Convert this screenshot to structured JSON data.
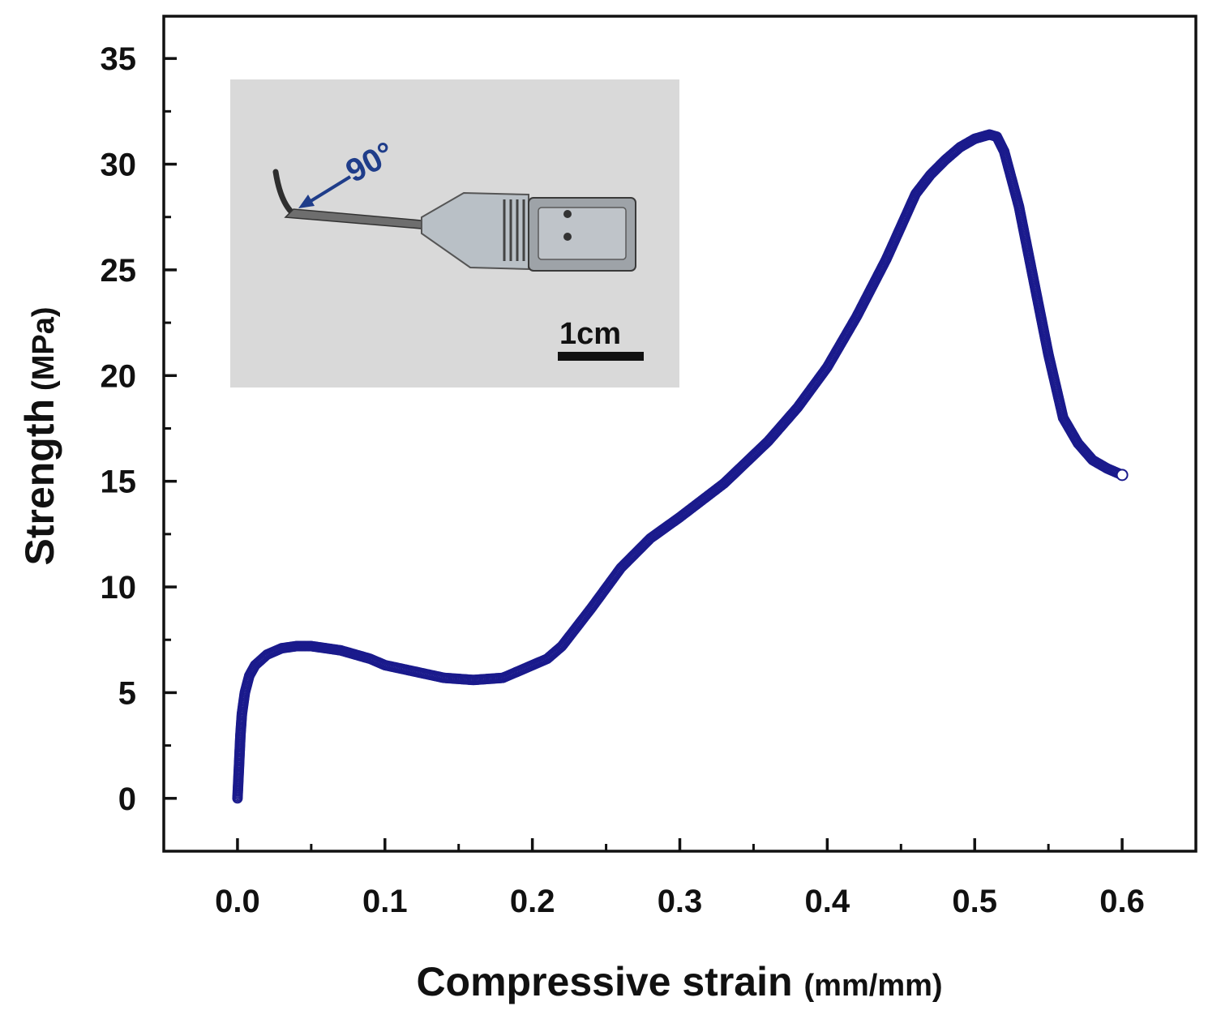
{
  "chart_data": {
    "type": "scatter",
    "title": "",
    "xlabel": "Compressive strain",
    "xlabel_unit": "(mm/mm)",
    "ylabel": "Strength",
    "ylabel_unit": "(MPa)",
    "xlim": [
      -0.05,
      0.65
    ],
    "ylim": [
      -2.5,
      37
    ],
    "x_ticks": [
      "0.0",
      "0.1",
      "0.2",
      "0.3",
      "0.4",
      "0.5",
      "0.6"
    ],
    "y_ticks": [
      "0",
      "5",
      "10",
      "15",
      "20",
      "25",
      "30",
      "35"
    ],
    "grid": false,
    "legend": "none",
    "series": [
      {
        "color": "#1a1a8c",
        "marker": "open-circle",
        "x": [
          0.0,
          0.001,
          0.002,
          0.003,
          0.005,
          0.008,
          0.012,
          0.02,
          0.03,
          0.04,
          0.05,
          0.06,
          0.07,
          0.08,
          0.09,
          0.1,
          0.12,
          0.14,
          0.16,
          0.18,
          0.2,
          0.21,
          0.22,
          0.24,
          0.26,
          0.28,
          0.3,
          0.33,
          0.36,
          0.38,
          0.4,
          0.42,
          0.44,
          0.46,
          0.47,
          0.48,
          0.49,
          0.5,
          0.51,
          0.515,
          0.52,
          0.53,
          0.54,
          0.55,
          0.56,
          0.57,
          0.58,
          0.59,
          0.6
        ],
        "y": [
          0.0,
          1.5,
          3.0,
          4.0,
          5.0,
          5.8,
          6.3,
          6.8,
          7.1,
          7.2,
          7.2,
          7.1,
          7.0,
          6.8,
          6.6,
          6.3,
          6.0,
          5.7,
          5.6,
          5.7,
          6.3,
          6.6,
          7.2,
          9.0,
          10.9,
          12.3,
          13.3,
          14.9,
          16.9,
          18.5,
          20.4,
          22.8,
          25.5,
          28.6,
          29.5,
          30.2,
          30.8,
          31.2,
          31.4,
          31.3,
          30.6,
          28.0,
          24.5,
          21.0,
          18.0,
          16.8,
          16.0,
          15.6,
          15.3
        ]
      }
    ],
    "inset": {
      "annotations": [
        "90°",
        "1cm"
      ]
    }
  }
}
